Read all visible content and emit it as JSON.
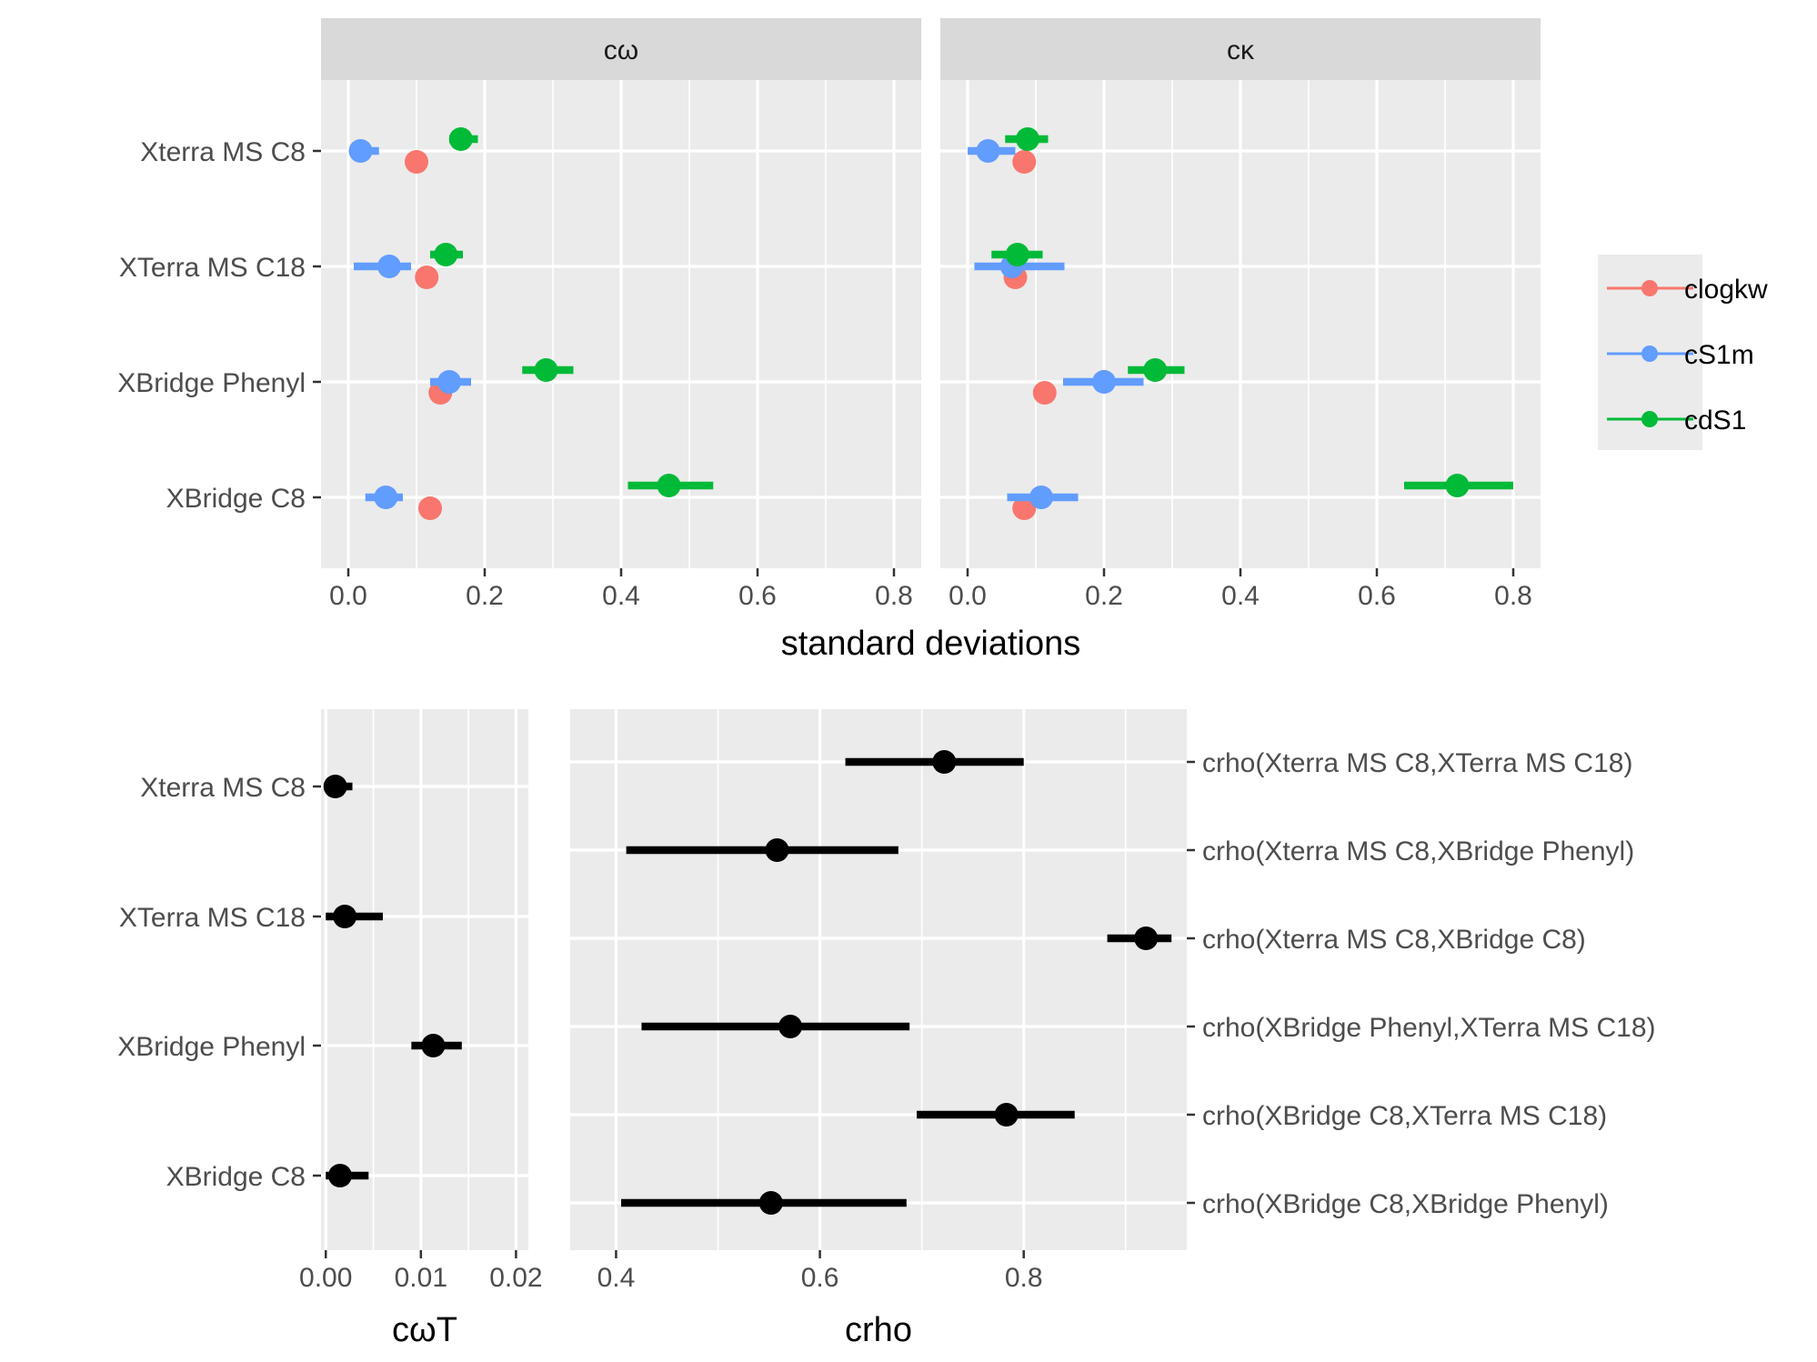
{
  "colors": {
    "panel_bg": "#ebebeb",
    "strip_bg": "#d9d9d9",
    "grid": "#ffffff",
    "tick": "#333333",
    "clogkw": "#f8766d",
    "cS1m": "#619cff",
    "cdS1": "#00ba38",
    "black": "#000000"
  },
  "chart_data": [
    {
      "type": "pointrange",
      "name_internal": "top-facets",
      "facets": [
        "cω",
        "cκ"
      ],
      "categories": [
        "Xterra MS C8",
        "XTerra MS C18",
        "XBridge Phenyl",
        "XBridge C8"
      ],
      "xlabel": "standard deviations",
      "xlim": [
        -0.04,
        0.84
      ],
      "xticks": [
        "0.0",
        "0.2",
        "0.4",
        "0.6",
        "0.8"
      ],
      "xtick_values": [
        0,
        0.2,
        0.4,
        0.6,
        0.8
      ],
      "legend": {
        "position": "right",
        "entries": [
          "clogkw",
          "cS1m",
          "cdS1"
        ]
      },
      "series": [
        {
          "name": "clogkw",
          "points": [
            {
              "facet": 0,
              "category": 0,
              "value": 0.1,
              "low": 0.1,
              "high": 0.1
            },
            {
              "facet": 0,
              "category": 1,
              "value": 0.115,
              "low": 0.115,
              "high": 0.115
            },
            {
              "facet": 0,
              "category": 2,
              "value": 0.135,
              "low": 0.135,
              "high": 0.135
            },
            {
              "facet": 0,
              "category": 3,
              "value": 0.12,
              "low": 0.12,
              "high": 0.12
            },
            {
              "facet": 1,
              "category": 0,
              "value": 0.083,
              "low": 0.083,
              "high": 0.083
            },
            {
              "facet": 1,
              "category": 1,
              "value": 0.07,
              "low": 0.07,
              "high": 0.07
            },
            {
              "facet": 1,
              "category": 2,
              "value": 0.113,
              "low": 0.113,
              "high": 0.113
            },
            {
              "facet": 1,
              "category": 3,
              "value": 0.083,
              "low": 0.083,
              "high": 0.083
            }
          ]
        },
        {
          "name": "cS1m",
          "points": [
            {
              "facet": 0,
              "category": 0,
              "value": 0.018,
              "low": 0.005,
              "high": 0.045
            },
            {
              "facet": 0,
              "category": 1,
              "value": 0.06,
              "low": 0.008,
              "high": 0.092
            },
            {
              "facet": 0,
              "category": 2,
              "value": 0.148,
              "low": 0.12,
              "high": 0.18
            },
            {
              "facet": 0,
              "category": 3,
              "value": 0.055,
              "low": 0.025,
              "high": 0.08
            },
            {
              "facet": 1,
              "category": 0,
              "value": 0.03,
              "low": 0.0,
              "high": 0.07
            },
            {
              "facet": 1,
              "category": 1,
              "value": 0.065,
              "low": 0.01,
              "high": 0.142
            },
            {
              "facet": 1,
              "category": 2,
              "value": 0.2,
              "low": 0.14,
              "high": 0.258
            },
            {
              "facet": 1,
              "category": 3,
              "value": 0.108,
              "low": 0.058,
              "high": 0.162
            }
          ]
        },
        {
          "name": "cdS1",
          "points": [
            {
              "facet": 0,
              "category": 0,
              "value": 0.165,
              "low": 0.148,
              "high": 0.19
            },
            {
              "facet": 0,
              "category": 1,
              "value": 0.143,
              "low": 0.12,
              "high": 0.168
            },
            {
              "facet": 0,
              "category": 2,
              "value": 0.29,
              "low": 0.255,
              "high": 0.33
            },
            {
              "facet": 0,
              "category": 3,
              "value": 0.47,
              "low": 0.41,
              "high": 0.535
            },
            {
              "facet": 1,
              "category": 0,
              "value": 0.088,
              "low": 0.055,
              "high": 0.118
            },
            {
              "facet": 1,
              "category": 1,
              "value": 0.073,
              "low": 0.035,
              "high": 0.11
            },
            {
              "facet": 1,
              "category": 2,
              "value": 0.275,
              "low": 0.235,
              "high": 0.318
            },
            {
              "facet": 1,
              "category": 3,
              "value": 0.718,
              "low": 0.64,
              "high": 0.8
            }
          ]
        }
      ]
    },
    {
      "type": "pointrange",
      "name_internal": "bottom-left",
      "categories": [
        "Xterra MS C8",
        "XTerra MS C18",
        "XBridge Phenyl",
        "XBridge C8"
      ],
      "xlabel": "cωT",
      "xlim": [
        -0.0005,
        0.0213
      ],
      "xticks": [
        "0.00",
        "0.01",
        "0.02"
      ],
      "xtick_values": [
        0,
        0.01,
        0.02
      ],
      "points": [
        {
          "category": 0,
          "value": 0.001,
          "low": 0.0,
          "high": 0.0028
        },
        {
          "category": 1,
          "value": 0.002,
          "low": 0.0,
          "high": 0.006
        },
        {
          "category": 2,
          "value": 0.0113,
          "low": 0.009,
          "high": 0.0143
        },
        {
          "category": 3,
          "value": 0.0015,
          "low": 0.0,
          "high": 0.0045
        }
      ]
    },
    {
      "type": "pointrange",
      "name_internal": "bottom-right",
      "categories": [
        "crho(Xterra MS C8,XTerra MS C18)",
        "crho(Xterra MS C8,XBridge Phenyl)",
        "crho(Xterra MS C8,XBridge C8)",
        "crho(XBridge Phenyl,XTerra MS C18)",
        "crho(XBridge C8,XTerra MS C18)",
        "crho(XBridge C8,XBridge Phenyl)"
      ],
      "xlabel": "crho",
      "xlim": [
        0.355,
        0.96
      ],
      "xticks": [
        "0.4",
        "0.6",
        "0.8"
      ],
      "xtick_values": [
        0.4,
        0.6,
        0.8
      ],
      "points": [
        {
          "category": 0,
          "value": 0.722,
          "low": 0.625,
          "high": 0.8
        },
        {
          "category": 1,
          "value": 0.558,
          "low": 0.41,
          "high": 0.677
        },
        {
          "category": 2,
          "value": 0.92,
          "low": 0.882,
          "high": 0.945
        },
        {
          "category": 3,
          "value": 0.571,
          "low": 0.425,
          "high": 0.688
        },
        {
          "category": 4,
          "value": 0.783,
          "low": 0.695,
          "high": 0.85
        },
        {
          "category": 5,
          "value": 0.552,
          "low": 0.405,
          "high": 0.685
        }
      ]
    }
  ]
}
